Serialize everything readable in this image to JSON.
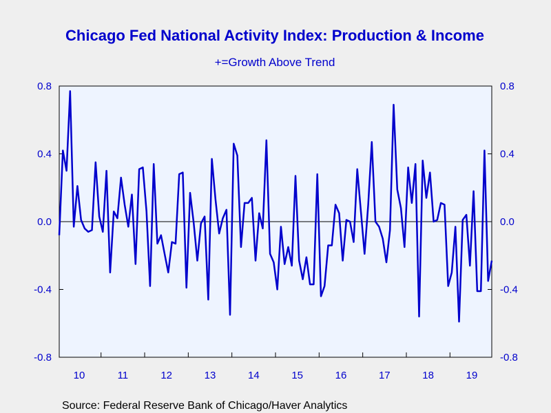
{
  "chart_data": {
    "type": "line",
    "title": "Chicago Fed National Activity Index: Production & Income",
    "subtitle": "+=Growth Above Trend",
    "source": "Source:  Federal Reserve Bank of Chicago/Haver Analytics",
    "x_tick_labels": [
      "10",
      "11",
      "12",
      "13",
      "14",
      "15",
      "16",
      "17",
      "18",
      "19"
    ],
    "y_tick_labels": [
      "0.8",
      "0.4",
      "0.0",
      "-0.4",
      "-0.8"
    ],
    "y_ticks": [
      0.8,
      0.4,
      0.0,
      -0.4,
      -0.8
    ],
    "ylim": [
      -0.8,
      0.8
    ],
    "x_start": "2010-01",
    "x_end": "2019-12",
    "dual_y_axis": true,
    "zero_line": true,
    "colors": {
      "line": "#0000cc",
      "plot_background": "#eef4ff",
      "page_background": "#efefef",
      "text": "#0000cc"
    },
    "series": [
      {
        "values": [
          -0.08,
          0.42,
          0.3,
          0.77,
          -0.03,
          0.21,
          0.01,
          -0.04,
          -0.06,
          -0.05,
          0.35,
          0.03,
          -0.06,
          0.3,
          -0.3,
          0.06,
          0.02,
          0.26,
          0.1,
          -0.03,
          0.16,
          -0.25,
          0.31,
          0.32,
          0.06,
          -0.38,
          0.34,
          -0.13,
          -0.08,
          -0.19,
          -0.3,
          -0.12,
          -0.13,
          0.28,
          0.29,
          -0.39,
          0.17,
          -0.01,
          -0.23,
          -0.01,
          0.03,
          -0.46,
          0.37,
          0.13,
          -0.07,
          0.02,
          0.07,
          -0.55,
          0.46,
          0.39,
          -0.15,
          0.11,
          0.11,
          0.14,
          -0.23,
          0.05,
          -0.04,
          0.48,
          -0.19,
          -0.24,
          -0.4,
          -0.03,
          -0.25,
          -0.15,
          -0.26,
          0.27,
          -0.23,
          -0.34,
          -0.21,
          -0.37,
          -0.37,
          0.28,
          -0.44,
          -0.38,
          -0.14,
          -0.14,
          0.1,
          0.05,
          -0.23,
          0.01,
          0.0,
          -0.12,
          0.31,
          0.06,
          -0.19,
          0.1,
          0.47,
          0.0,
          -0.03,
          -0.1,
          -0.24,
          -0.05,
          0.69,
          0.19,
          0.08,
          -0.15,
          0.32,
          0.11,
          0.34,
          -0.56,
          0.36,
          0.14,
          0.29,
          0.0,
          0.01,
          0.11,
          0.1,
          -0.38,
          -0.3,
          -0.03,
          -0.59,
          0.01,
          0.04,
          -0.26,
          0.18,
          -0.41,
          -0.41,
          0.42,
          -0.35,
          -0.23
        ]
      }
    ]
  }
}
